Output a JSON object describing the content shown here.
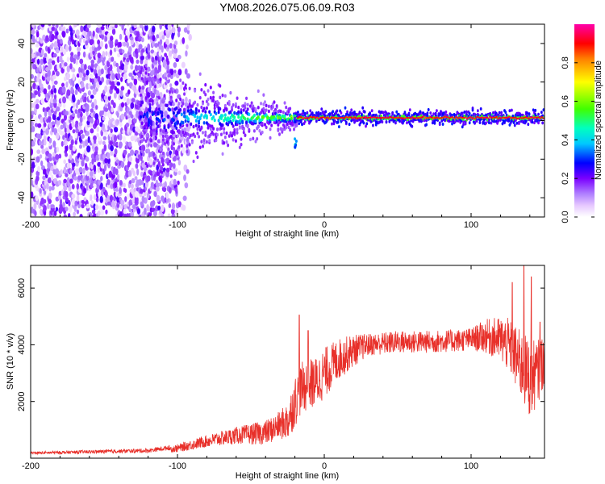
{
  "title": "YM08.2026.075.06.09.R03",
  "chart_data": [
    {
      "type": "heatmap",
      "xlabel": "Height of straight line (km)",
      "ylabel": "Frequency (Hz)",
      "xlim": [
        -200,
        150
      ],
      "ylim": [
        -50,
        50
      ],
      "xticks": [
        "-200",
        "-100",
        "0",
        "100"
      ],
      "yticks": [
        "-40",
        "-20",
        "0",
        "20",
        "40"
      ],
      "xtick_values": [
        -200,
        -100,
        0,
        100
      ],
      "ytick_values": [
        -40,
        -20,
        0,
        20,
        40
      ],
      "colorbar": {
        "label": "Normalized spectral amplitude",
        "range": [
          0,
          1
        ],
        "ticks": [
          "0.0",
          "0.2",
          "0.4",
          "0.6",
          "0.8"
        ],
        "tick_values": [
          0.0,
          0.2,
          0.4,
          0.6,
          0.8
        ]
      },
      "features": {
        "diffuse_noise_region_km": [
          -200,
          -100
        ],
        "converging_band_km": [
          -100,
          -20
        ],
        "narrow_band_km": [
          -20,
          150
        ],
        "narrow_band_frequency_hz": 1.5,
        "isolated_feature_km": -20,
        "isolated_feature_frequency_hz": -12
      }
    },
    {
      "type": "line",
      "xlabel": "Height of straight line (km)",
      "ylabel": "SNR (10 * v/v)",
      "xlim": [
        -200,
        150
      ],
      "ylim": [
        0,
        6800
      ],
      "xticks": [
        "-200",
        "-100",
        "0",
        "100"
      ],
      "yticks": [
        "2000",
        "4000",
        "6000"
      ],
      "xtick_values": [
        -200,
        -100,
        0,
        100
      ],
      "ytick_values": [
        2000,
        4000,
        6000
      ],
      "color": "#e8302a",
      "trend": {
        "x": [
          -200,
          -120,
          -100,
          -80,
          -60,
          -40,
          -25,
          -20,
          -15,
          -5,
          0,
          10,
          20,
          30,
          50,
          70,
          90,
          100,
          110,
          120,
          125,
          130,
          135,
          140,
          145,
          150
        ],
        "y": [
          150,
          220,
          350,
          600,
          800,
          900,
          1300,
          2000,
          2500,
          2700,
          3000,
          3500,
          3800,
          4000,
          4100,
          4100,
          4150,
          4200,
          4300,
          4200,
          4000,
          3600,
          3200,
          2800,
          3000,
          3500
        ]
      },
      "noise_amplitude": {
        "x": [
          -200,
          -110,
          -60,
          -30,
          -20,
          0,
          30,
          100,
          120,
          140,
          150
        ],
        "y": [
          60,
          100,
          300,
          500,
          900,
          900,
          400,
          400,
          800,
          1400,
          900
        ]
      },
      "spikes": [
        {
          "x": -17,
          "y": 5050
        },
        {
          "x": -11,
          "y": 4500
        },
        {
          "x": 128,
          "y": 6200
        },
        {
          "x": 136,
          "y": 6800
        },
        {
          "x": 141,
          "y": 6400
        },
        {
          "x": 147,
          "y": 4800
        }
      ]
    }
  ]
}
